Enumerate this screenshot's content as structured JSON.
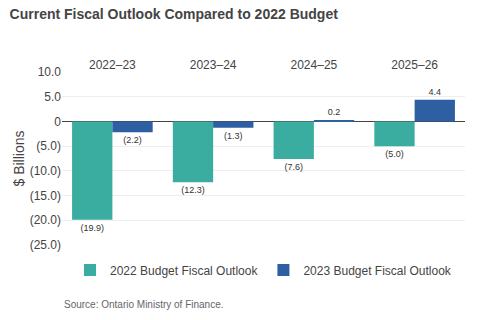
{
  "chart_data": {
    "type": "bar",
    "title": "Current Fiscal Outlook Compared to 2022 Budget",
    "ylabel": "$ Billions",
    "annotations": [
      "Source: Ontario Ministry of Finance."
    ],
    "categories": [
      "2022–23",
      "2023–24",
      "2024–25",
      "2025–26"
    ],
    "series": [
      {
        "name": "2022 Budget Fiscal Outlook",
        "color": "#3aada0",
        "values": [
          -19.9,
          -12.3,
          -7.6,
          -5.0
        ],
        "value_labels": [
          "(19.9)",
          "(12.3)",
          "(7.6)",
          "(5.0)"
        ]
      },
      {
        "name": "2023 Budget Fiscal Outlook",
        "color": "#2e5fa3",
        "values": [
          -2.2,
          -1.3,
          0.2,
          4.4
        ],
        "value_labels": [
          "(2.2)",
          "(1.3)",
          "0.2",
          "4.4"
        ]
      }
    ],
    "ylim": [
      -25.0,
      10.0
    ],
    "yticks": [
      {
        "value": -25.0,
        "label": "(25.0)"
      },
      {
        "value": -20.0,
        "label": "(20.0)"
      },
      {
        "value": -15.0,
        "label": "(15.0)"
      },
      {
        "value": -10.0,
        "label": "(10.0)"
      },
      {
        "value": -5.0,
        "label": "(5.0)"
      },
      0,
      {
        "value": 5.0,
        "label": "5.0"
      },
      {
        "value": 10.0,
        "label": "10.0"
      }
    ],
    "grid": true,
    "legend": "bottom",
    "data_labels": true
  }
}
